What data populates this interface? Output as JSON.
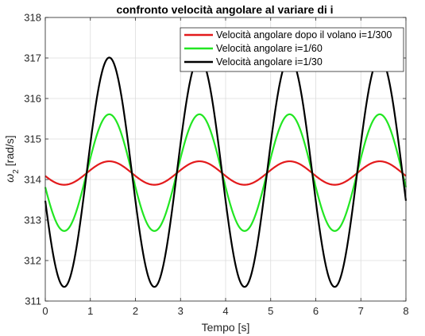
{
  "chart_data": {
    "type": "line",
    "title": "confronto velocità angolare al variare di i",
    "xlabel": "Tempo [s]",
    "ylabel_symbol": "ω",
    "ylabel_subscript": "2",
    "ylabel_unit": "[rad/s]",
    "xlim": [
      0,
      8
    ],
    "ylim": [
      311,
      318
    ],
    "xticks": [
      "0",
      "1",
      "2",
      "3",
      "4",
      "5",
      "6",
      "7",
      "8"
    ],
    "yticks": [
      "311",
      "312",
      "313",
      "314",
      "315",
      "316",
      "317",
      "318"
    ],
    "grid": true,
    "legend_position": "top-right",
    "model": "offset - amplitude * cos(pi * (t - 0.42) / 1.0)",
    "series": [
      {
        "name": "Velocità angolare dopo il volano i=1/300",
        "color": "#e31a1c",
        "x": [
          0,
          0.42,
          1.0,
          1.42,
          2.0,
          2.42,
          3.0,
          3.42,
          4.0,
          4.42,
          5.0,
          5.42,
          6.0,
          6.42,
          7.0,
          7.42,
          8.0
        ],
        "values": [
          314.15,
          313.88,
          314.21,
          314.45,
          314.14,
          313.88,
          314.22,
          314.45,
          314.14,
          313.88,
          314.22,
          314.45,
          314.14,
          313.88,
          314.22,
          314.45,
          314.2
        ],
        "offset": 314.16,
        "amplitude": 0.29
      },
      {
        "name": "Velocità angolare i=1/60",
        "color": "#22e622",
        "x": [
          0,
          0.42,
          1.0,
          1.58,
          2.0,
          2.42,
          3.0,
          3.58,
          4.0,
          4.42,
          5.0,
          5.58,
          6.0,
          6.42,
          7.0,
          7.58,
          8.0
        ],
        "values": [
          314.1,
          312.73,
          314.25,
          315.6,
          314.1,
          312.73,
          314.25,
          315.6,
          314.1,
          312.73,
          314.25,
          315.6,
          314.1,
          312.73,
          314.25,
          315.6,
          314.3
        ],
        "offset": 314.17,
        "amplitude": 1.44
      },
      {
        "name": "Velocità angolare i=1/30",
        "color": "#000000",
        "x": [
          0,
          0.42,
          1.0,
          1.58,
          2.0,
          2.42,
          3.0,
          3.58,
          4.0,
          4.42,
          5.0,
          5.58,
          6.0,
          6.42,
          7.0,
          7.58,
          8.0
        ],
        "values": [
          314.05,
          311.35,
          314.3,
          317.02,
          314.05,
          311.35,
          314.3,
          317.02,
          314.05,
          311.35,
          314.3,
          317.02,
          314.05,
          311.35,
          314.3,
          317.02,
          314.4
        ],
        "offset": 314.18,
        "amplitude": 2.83
      }
    ]
  }
}
